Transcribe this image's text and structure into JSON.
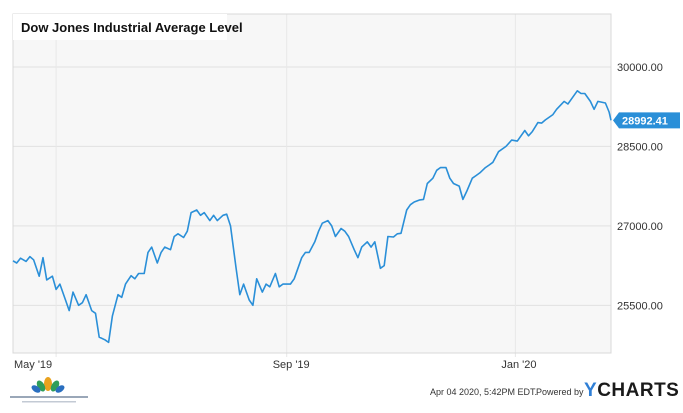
{
  "chart_data": {
    "type": "line",
    "title": "Dow Jones Industrial Average Level",
    "x_tick_labels": [
      "May '19",
      "Sep '19",
      "Jan '20"
    ],
    "y_tick_labels": [
      "30000.00",
      "28500.00",
      "27000.00",
      "25500.00"
    ],
    "y_ticks": [
      30000,
      28500,
      27000,
      25500
    ],
    "ylim": [
      24600,
      31000
    ],
    "x_range": [
      "2019-04-08",
      "2020-02-21"
    ],
    "last_value_label": "28992.41",
    "line_color": "#2a8fd8",
    "grid": "horizontal",
    "series": [
      {
        "x": [
          "2019-04-08",
          "2019-04-10",
          "2019-04-12",
          "2019-04-15",
          "2019-04-17",
          "2019-04-19",
          "2019-04-22",
          "2019-04-24",
          "2019-04-26",
          "2019-04-29",
          "2019-05-01",
          "2019-05-03",
          "2019-05-06",
          "2019-05-08",
          "2019-05-10",
          "2019-05-13",
          "2019-05-15",
          "2019-05-17",
          "2019-05-20",
          "2019-05-22",
          "2019-05-24",
          "2019-05-27",
          "2019-05-29",
          "2019-05-31",
          "2019-06-03",
          "2019-06-05",
          "2019-06-07",
          "2019-06-10",
          "2019-06-12",
          "2019-06-14",
          "2019-06-17",
          "2019-06-19",
          "2019-06-21",
          "2019-06-24",
          "2019-06-26",
          "2019-06-28",
          "2019-07-01",
          "2019-07-03",
          "2019-07-05",
          "2019-07-08",
          "2019-07-10",
          "2019-07-12",
          "2019-07-15",
          "2019-07-17",
          "2019-07-19",
          "2019-07-22",
          "2019-07-24",
          "2019-07-26",
          "2019-07-29",
          "2019-07-31",
          "2019-08-02",
          "2019-08-05",
          "2019-08-07",
          "2019-08-09",
          "2019-08-12",
          "2019-08-14",
          "2019-08-16",
          "2019-08-19",
          "2019-08-21",
          "2019-08-23",
          "2019-08-26",
          "2019-08-28",
          "2019-08-30",
          "2019-09-03",
          "2019-09-05",
          "2019-09-09",
          "2019-09-11",
          "2019-09-13",
          "2019-09-16",
          "2019-09-18",
          "2019-09-20",
          "2019-09-23",
          "2019-09-25",
          "2019-09-27",
          "2019-09-30",
          "2019-10-02",
          "2019-10-04",
          "2019-10-07",
          "2019-10-09",
          "2019-10-11",
          "2019-10-14",
          "2019-10-16",
          "2019-10-18",
          "2019-10-21",
          "2019-10-23",
          "2019-10-25",
          "2019-10-28",
          "2019-10-30",
          "2019-11-01",
          "2019-11-04",
          "2019-11-06",
          "2019-11-08",
          "2019-11-11",
          "2019-11-13",
          "2019-11-15",
          "2019-11-18",
          "2019-11-20",
          "2019-11-22",
          "2019-11-25",
          "2019-11-27",
          "2019-11-29",
          "2019-12-02",
          "2019-12-04",
          "2019-12-06",
          "2019-12-09",
          "2019-12-11",
          "2019-12-13",
          "2019-12-16",
          "2019-12-18",
          "2019-12-20",
          "2019-12-23",
          "2019-12-27",
          "2019-12-30",
          "2020-01-02",
          "2020-01-06",
          "2020-01-08",
          "2020-01-10",
          "2020-01-13",
          "2020-01-15",
          "2020-01-17",
          "2020-01-21",
          "2020-01-23",
          "2020-01-27",
          "2020-01-29",
          "2020-01-31",
          "2020-02-03",
          "2020-02-05",
          "2020-02-07",
          "2020-02-10",
          "2020-02-12",
          "2020-02-14",
          "2020-02-18",
          "2020-02-20",
          "2020-02-21"
        ],
        "y": [
          26340,
          26300,
          26390,
          26330,
          26420,
          26360,
          26050,
          26400,
          25980,
          26050,
          25800,
          25900,
          25600,
          25400,
          25750,
          25500,
          25550,
          25700,
          25400,
          25350,
          24900,
          24850,
          24800,
          25300,
          25700,
          25650,
          25900,
          26060,
          26000,
          26100,
          26100,
          26500,
          26600,
          26300,
          26500,
          26600,
          26550,
          26800,
          26850,
          26780,
          26900,
          27250,
          27300,
          27200,
          27250,
          27100,
          27200,
          27100,
          27200,
          27220,
          27000,
          26200,
          25700,
          25900,
          25600,
          25500,
          26000,
          25750,
          25900,
          25850,
          26100,
          25850,
          25900,
          25900,
          26000,
          26400,
          26500,
          26500,
          26700,
          26900,
          27050,
          27100,
          27000,
          26800,
          26950,
          26900,
          26800,
          26550,
          26400,
          26600,
          26700,
          26600,
          26700,
          26200,
          26250,
          26800,
          26790,
          26850,
          26860,
          27300,
          27400,
          27450,
          27490,
          27500,
          27800,
          27900,
          28050,
          28100,
          28100,
          27900,
          27800,
          27750,
          27500,
          27650,
          27900,
          27950,
          28000,
          28100,
          28150,
          28200,
          28400,
          28500,
          28620,
          28600,
          28800,
          28700,
          28780,
          28950,
          28940,
          29000,
          29100,
          29200,
          29350,
          29300,
          29400,
          29550,
          29500,
          29500,
          29350,
          29200,
          29350,
          29320,
          29150,
          28992.41
        ]
      }
    ],
    "footer": {
      "timestamp": "Apr 04 2020, 5:42PM EDT.",
      "powered_by": "Powered by",
      "brand_y": "Y",
      "brand_rest": "CHARTS"
    }
  }
}
